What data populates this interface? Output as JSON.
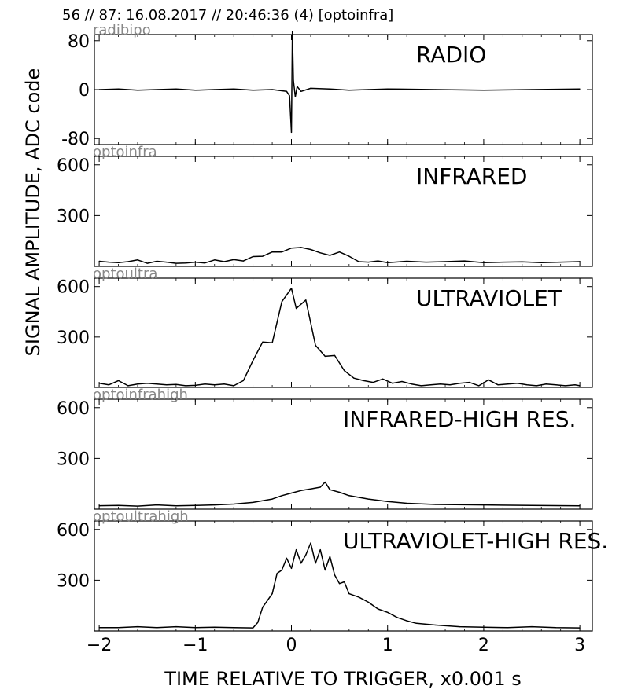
{
  "header": "56 // 87:   16.08.2017 // 20:46:36 (4)  [optoinfra]",
  "ylabel": "SIGNAL AMPLITUDE,  ADC code",
  "xlabel": "TIME RELATIVE TO TRIGGER,   x0.001 s",
  "x_ticks": [
    "−2",
    "−1",
    "0",
    "1",
    "2",
    "3"
  ],
  "chart_data": [
    {
      "type": "line",
      "panel_label": "RADIO",
      "source": "radibipo",
      "ylim": [
        -90,
        90
      ],
      "y_ticks": [
        "80",
        "0",
        "-80"
      ],
      "x": [
        -2.0,
        -1.8,
        -1.6,
        -1.4,
        -1.2,
        -1.0,
        -0.8,
        -0.6,
        -0.4,
        -0.2,
        -0.05,
        -0.02,
        0.0,
        0.01,
        0.02,
        0.04,
        0.06,
        0.1,
        0.2,
        0.4,
        0.6,
        0.8,
        1.0,
        1.5,
        2.0,
        2.5,
        3.0
      ],
      "values": [
        0,
        1,
        -1,
        0,
        1,
        -1,
        0,
        1,
        -1,
        0,
        -3,
        -10,
        -70,
        95,
        15,
        -12,
        5,
        -3,
        2,
        1,
        -1,
        0,
        1,
        0,
        -1,
        0,
        1
      ]
    },
    {
      "type": "line",
      "panel_label": "INFRARED",
      "source": "optoinfra",
      "ylim": [
        0,
        650
      ],
      "y_ticks": [
        "600",
        "300"
      ],
      "x": [
        -2.0,
        -1.9,
        -1.8,
        -1.7,
        -1.6,
        -1.5,
        -1.4,
        -1.3,
        -1.2,
        -1.1,
        -1.0,
        -0.9,
        -0.8,
        -0.7,
        -0.6,
        -0.5,
        -0.4,
        -0.3,
        -0.2,
        -0.1,
        0.0,
        0.1,
        0.2,
        0.3,
        0.4,
        0.5,
        0.6,
        0.7,
        0.8,
        0.9,
        1.0,
        1.2,
        1.4,
        1.6,
        1.8,
        2.0,
        2.2,
        2.4,
        2.6,
        2.8,
        3.0
      ],
      "values": [
        30,
        25,
        22,
        28,
        38,
        18,
        30,
        25,
        18,
        20,
        25,
        20,
        38,
        28,
        40,
        32,
        58,
        60,
        85,
        85,
        108,
        112,
        100,
        80,
        65,
        85,
        60,
        28,
        25,
        32,
        22,
        30,
        25,
        28,
        32,
        22,
        25,
        27,
        22,
        25,
        28
      ]
    },
    {
      "type": "line",
      "panel_label": "ULTRAVIOLET",
      "source": "optoultra",
      "ylim": [
        0,
        650
      ],
      "y_ticks": [
        "600",
        "300"
      ],
      "x": [
        -2.0,
        -1.9,
        -1.8,
        -1.7,
        -1.6,
        -1.5,
        -1.4,
        -1.3,
        -1.2,
        -1.1,
        -1.0,
        -0.9,
        -0.8,
        -0.7,
        -0.6,
        -0.5,
        -0.4,
        -0.3,
        -0.2,
        -0.1,
        0.0,
        0.05,
        0.15,
        0.25,
        0.35,
        0.45,
        0.55,
        0.65,
        0.75,
        0.85,
        0.95,
        1.05,
        1.15,
        1.25,
        1.35,
        1.45,
        1.55,
        1.65,
        1.75,
        1.85,
        1.95,
        2.05,
        2.15,
        2.25,
        2.35,
        2.45,
        2.55,
        2.65,
        2.75,
        2.85,
        2.95,
        3.0
      ],
      "values": [
        25,
        15,
        40,
        10,
        20,
        25,
        20,
        15,
        18,
        10,
        12,
        20,
        15,
        20,
        10,
        40,
        160,
        270,
        265,
        510,
        590,
        470,
        520,
        250,
        185,
        190,
        100,
        55,
        40,
        30,
        50,
        25,
        35,
        20,
        10,
        15,
        20,
        15,
        25,
        30,
        10,
        45,
        15,
        20,
        25,
        15,
        10,
        20,
        15,
        10,
        15,
        10
      ]
    },
    {
      "type": "line",
      "panel_label": "INFRARED-HIGH RES.",
      "source": "optoinfrahigh",
      "ylim": [
        0,
        650
      ],
      "y_ticks": [
        "600",
        "300"
      ],
      "x": [
        -2.0,
        -1.8,
        -1.6,
        -1.4,
        -1.2,
        -1.0,
        -0.8,
        -0.6,
        -0.4,
        -0.2,
        -0.1,
        0.0,
        0.1,
        0.2,
        0.3,
        0.35,
        0.4,
        0.5,
        0.6,
        0.8,
        1.0,
        1.2,
        1.5,
        2.0,
        2.5,
        3.0
      ],
      "values": [
        20,
        22,
        18,
        25,
        20,
        22,
        25,
        30,
        40,
        60,
        80,
        95,
        110,
        120,
        130,
        160,
        115,
        100,
        80,
        60,
        45,
        35,
        28,
        25,
        22,
        20
      ]
    },
    {
      "type": "line",
      "panel_label": "ULTRAVIOLET-HIGH RES.",
      "source": "optoultrahigh",
      "ylim": [
        0,
        650
      ],
      "y_ticks": [
        "600",
        "300"
      ],
      "x": [
        -2.0,
        -1.8,
        -1.6,
        -1.4,
        -1.2,
        -1.0,
        -0.8,
        -0.6,
        -0.4,
        -0.35,
        -0.3,
        -0.25,
        -0.2,
        -0.15,
        -0.1,
        -0.05,
        0.0,
        0.05,
        0.1,
        0.15,
        0.2,
        0.25,
        0.3,
        0.35,
        0.4,
        0.45,
        0.5,
        0.55,
        0.6,
        0.7,
        0.8,
        0.9,
        1.0,
        1.1,
        1.2,
        1.3,
        1.5,
        1.75,
        2.0,
        2.25,
        2.5,
        2.75,
        3.0
      ],
      "values": [
        20,
        20,
        25,
        20,
        25,
        20,
        22,
        20,
        18,
        50,
        140,
        180,
        220,
        340,
        360,
        430,
        370,
        480,
        400,
        450,
        520,
        400,
        480,
        360,
        440,
        330,
        280,
        290,
        220,
        200,
        170,
        130,
        110,
        80,
        60,
        45,
        35,
        25,
        22,
        20,
        25,
        20,
        18
      ]
    }
  ]
}
